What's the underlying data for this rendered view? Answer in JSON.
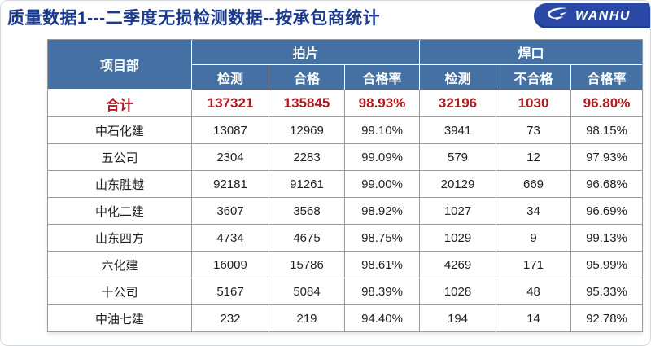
{
  "page": {
    "title": "质量数据1---二季度无损检测数据--按承包商统计"
  },
  "logo": {
    "text": "WANHU",
    "icon": "wanhua-swoosh-icon",
    "bg_color": "#2a49a6"
  },
  "colors": {
    "header_bg": "#4570a4",
    "title_text": "#1b3a8c",
    "total_text": "#b11a20",
    "grid_line": "#9a9a9a"
  },
  "table": {
    "corner_header": "项目部",
    "groups": [
      {
        "label": "拍片",
        "columns": [
          "检测",
          "合格",
          "合格率"
        ]
      },
      {
        "label": "焊口",
        "columns": [
          "检测",
          "不合格",
          "合格率"
        ]
      }
    ],
    "total_row": {
      "label": "合计",
      "values": [
        "137321",
        "135845",
        "98.93%",
        "32196",
        "1030",
        "96.80%"
      ]
    },
    "rows": [
      {
        "label": "中石化建",
        "values": [
          "13087",
          "12969",
          "99.10%",
          "3941",
          "73",
          "98.15%"
        ]
      },
      {
        "label": "五公司",
        "values": [
          "2304",
          "2283",
          "99.09%",
          "579",
          "12",
          "97.93%"
        ]
      },
      {
        "label": "山东胜越",
        "values": [
          "92181",
          "91261",
          "99.00%",
          "20129",
          "669",
          "96.68%"
        ]
      },
      {
        "label": "中化二建",
        "values": [
          "3607",
          "3568",
          "98.92%",
          "1027",
          "34",
          "96.69%"
        ]
      },
      {
        "label": "山东四方",
        "values": [
          "4734",
          "4675",
          "98.75%",
          "1029",
          "9",
          "99.13%"
        ]
      },
      {
        "label": "六化建",
        "values": [
          "16009",
          "15786",
          "98.61%",
          "4269",
          "171",
          "95.99%"
        ]
      },
      {
        "label": "十公司",
        "values": [
          "5167",
          "5084",
          "98.39%",
          "1028",
          "48",
          "95.33%"
        ]
      },
      {
        "label": "中油七建",
        "values": [
          "232",
          "219",
          "94.40%",
          "194",
          "14",
          "92.78%"
        ]
      }
    ]
  }
}
